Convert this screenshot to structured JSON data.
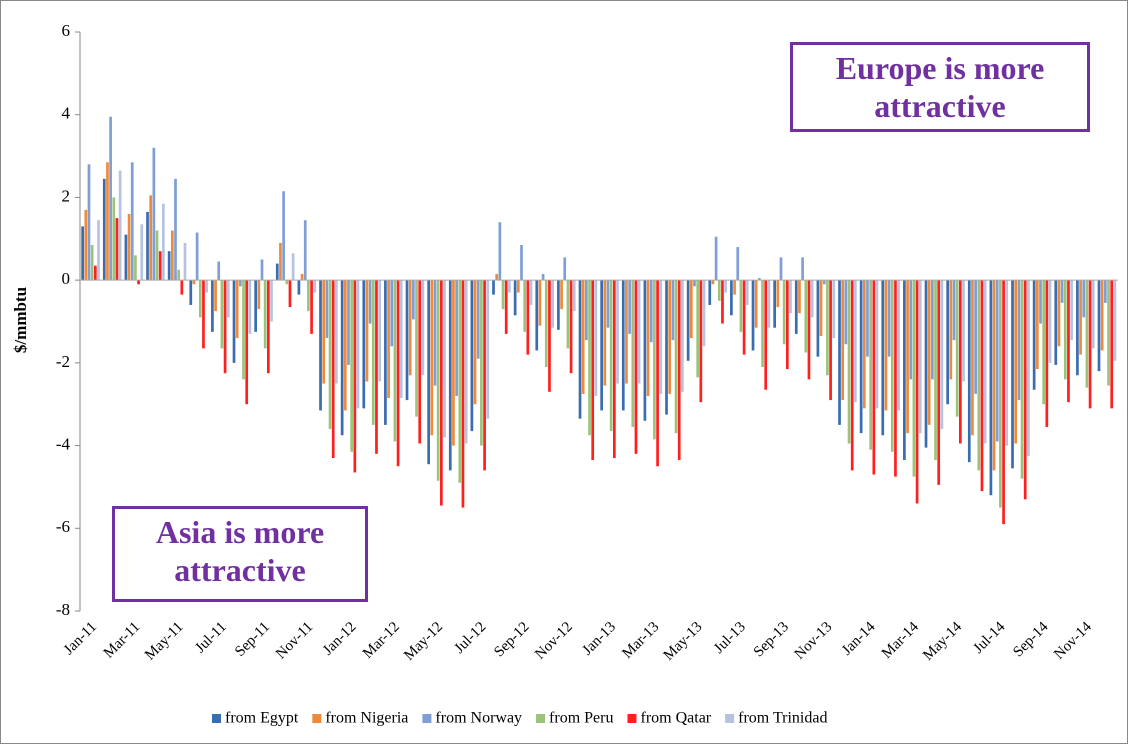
{
  "chart_data": {
    "type": "bar",
    "y_label": "$/mmbtu",
    "annotations": [
      "Europe is more attractive",
      "Asia is more attractive"
    ],
    "categories": [
      "Jan-11",
      null,
      "Mar-11",
      null,
      "May-11",
      null,
      "Jul-11",
      null,
      "Sep-11",
      null,
      "Nov-11",
      null,
      "Jan-12",
      null,
      "Mar-12",
      null,
      "May-12",
      null,
      "Jul-12",
      null,
      "Sep-12",
      null,
      "Nov-12",
      null,
      "Jan-13",
      null,
      "Mar-13",
      null,
      "May-13",
      null,
      "Jul-13",
      null,
      "Sep-13",
      null,
      "Nov-13",
      null,
      "Jan-14",
      null,
      "Mar-14",
      null,
      "May-14",
      null,
      "Jul-14",
      null,
      "Sep-14",
      null,
      "Nov-14",
      null
    ],
    "ylim": [
      -8,
      6
    ],
    "yticks": [
      -8,
      -6,
      -4,
      -2,
      0,
      2,
      4,
      6
    ],
    "legend": "bottom",
    "series": [
      {
        "name": "from Egypt",
        "color": "#3a6cb0",
        "values": [
          1.3,
          2.45,
          1.1,
          1.65,
          0.7,
          -0.6,
          -1.25,
          -2.0,
          -1.25,
          0.4,
          -0.35,
          -3.15,
          -3.75,
          -3.1,
          -3.5,
          -2.9,
          -4.45,
          -4.6,
          -3.65,
          -0.35,
          -0.85,
          -1.7,
          -1.2,
          -3.35,
          -3.15,
          -3.15,
          -3.4,
          -3.25,
          -1.95,
          -0.6,
          -0.85,
          -1.7,
          -1.15,
          -1.3,
          -1.85,
          -3.5,
          -3.7,
          -3.75,
          -4.35,
          -4.05,
          -3.0,
          -4.4,
          -5.2,
          -4.55,
          -2.65,
          -2.05,
          -2.3,
          -2.2
        ]
      },
      {
        "name": "from Nigeria",
        "color": "#ee8a3c",
        "values": [
          1.7,
          2.85,
          1.6,
          2.05,
          1.2,
          -0.1,
          -0.75,
          -1.4,
          -0.7,
          0.9,
          0.15,
          -2.5,
          -3.15,
          -2.45,
          -2.85,
          -2.3,
          -3.75,
          -4.0,
          -3.0,
          0.15,
          -0.3,
          -1.1,
          -0.7,
          -2.75,
          -2.55,
          -2.5,
          -2.8,
          -2.75,
          -1.4,
          -0.1,
          -0.35,
          -1.15,
          -0.65,
          -0.8,
          -1.35,
          -2.9,
          -3.1,
          -3.15,
          -3.7,
          -3.5,
          -2.4,
          -3.75,
          -4.6,
          -3.95,
          -2.15,
          -1.6,
          -1.8,
          -1.7
        ]
      },
      {
        "name": "from Norway",
        "color": "#7f9fd4",
        "values": [
          2.8,
          3.95,
          2.85,
          3.2,
          2.45,
          1.15,
          0.45,
          -0.15,
          0.5,
          2.15,
          1.45,
          -1.4,
          -2.05,
          -1.05,
          -1.6,
          -0.95,
          -2.55,
          -2.8,
          -1.9,
          1.4,
          0.85,
          0.15,
          0.55,
          -1.45,
          -1.15,
          -1.3,
          -1.5,
          -1.45,
          -0.15,
          1.05,
          0.8,
          0.05,
          0.55,
          0.55,
          -0.1,
          -1.55,
          -1.85,
          -1.85,
          -2.4,
          -2.4,
          -1.45,
          -2.75,
          -3.9,
          -2.9,
          -1.05,
          -0.55,
          -0.9,
          -0.55
        ]
      },
      {
        "name": "from Peru",
        "color": "#9dc37a",
        "values": [
          0.85,
          2.0,
          0.6,
          1.2,
          0.25,
          -0.9,
          -1.65,
          -2.4,
          -1.65,
          -0.1,
          -0.75,
          -3.6,
          -4.15,
          -3.5,
          -3.9,
          -3.3,
          -4.85,
          -4.9,
          -4.0,
          -0.7,
          -1.25,
          -2.1,
          -1.65,
          -3.75,
          -3.65,
          -3.55,
          -3.85,
          -3.7,
          -2.35,
          -0.5,
          -1.25,
          -2.1,
          -1.55,
          -1.75,
          -2.3,
          -3.95,
          -4.1,
          -4.15,
          -4.75,
          -4.35,
          -3.3,
          -4.6,
          -5.5,
          -4.8,
          -3.0,
          -2.4,
          -2.6,
          -2.55
        ]
      },
      {
        "name": "from Qatar",
        "color": "#ff1f1f",
        "values": [
          0.35,
          1.5,
          -0.1,
          0.7,
          -0.35,
          -1.65,
          -2.25,
          -3.0,
          -2.25,
          -0.65,
          -1.3,
          -4.3,
          -4.65,
          -4.2,
          -4.5,
          -3.95,
          -5.45,
          -5.5,
          -4.6,
          -1.3,
          -1.8,
          -2.7,
          -2.25,
          -4.35,
          -4.3,
          -4.2,
          -4.5,
          -4.35,
          -2.95,
          -1.05,
          -1.8,
          -2.65,
          -2.15,
          -2.4,
          -2.9,
          -4.6,
          -4.7,
          -4.75,
          -5.4,
          -4.95,
          -3.95,
          -5.1,
          -5.9,
          -5.3,
          -3.55,
          -2.95,
          -3.1,
          -3.1
        ]
      },
      {
        "name": "from Trinidad",
        "color": "#b6c3e0",
        "values": [
          1.45,
          2.65,
          1.35,
          1.85,
          0.9,
          -0.3,
          -0.9,
          -1.3,
          -1.0,
          0.65,
          -0.3,
          -2.5,
          -3.1,
          -2.45,
          -2.85,
          -2.3,
          -3.8,
          -3.95,
          -3.35,
          -0.3,
          -0.6,
          -1.15,
          -0.75,
          -2.8,
          -2.5,
          -2.5,
          -2.75,
          -2.7,
          -1.6,
          -0.3,
          -0.6,
          -1.15,
          -0.8,
          -0.9,
          -1.4,
          -2.95,
          -3.1,
          -3.15,
          -3.7,
          -3.6,
          -2.45,
          -3.95,
          -4.0,
          -4.25,
          -2.0,
          -1.45,
          -1.65,
          -1.95
        ]
      }
    ]
  }
}
